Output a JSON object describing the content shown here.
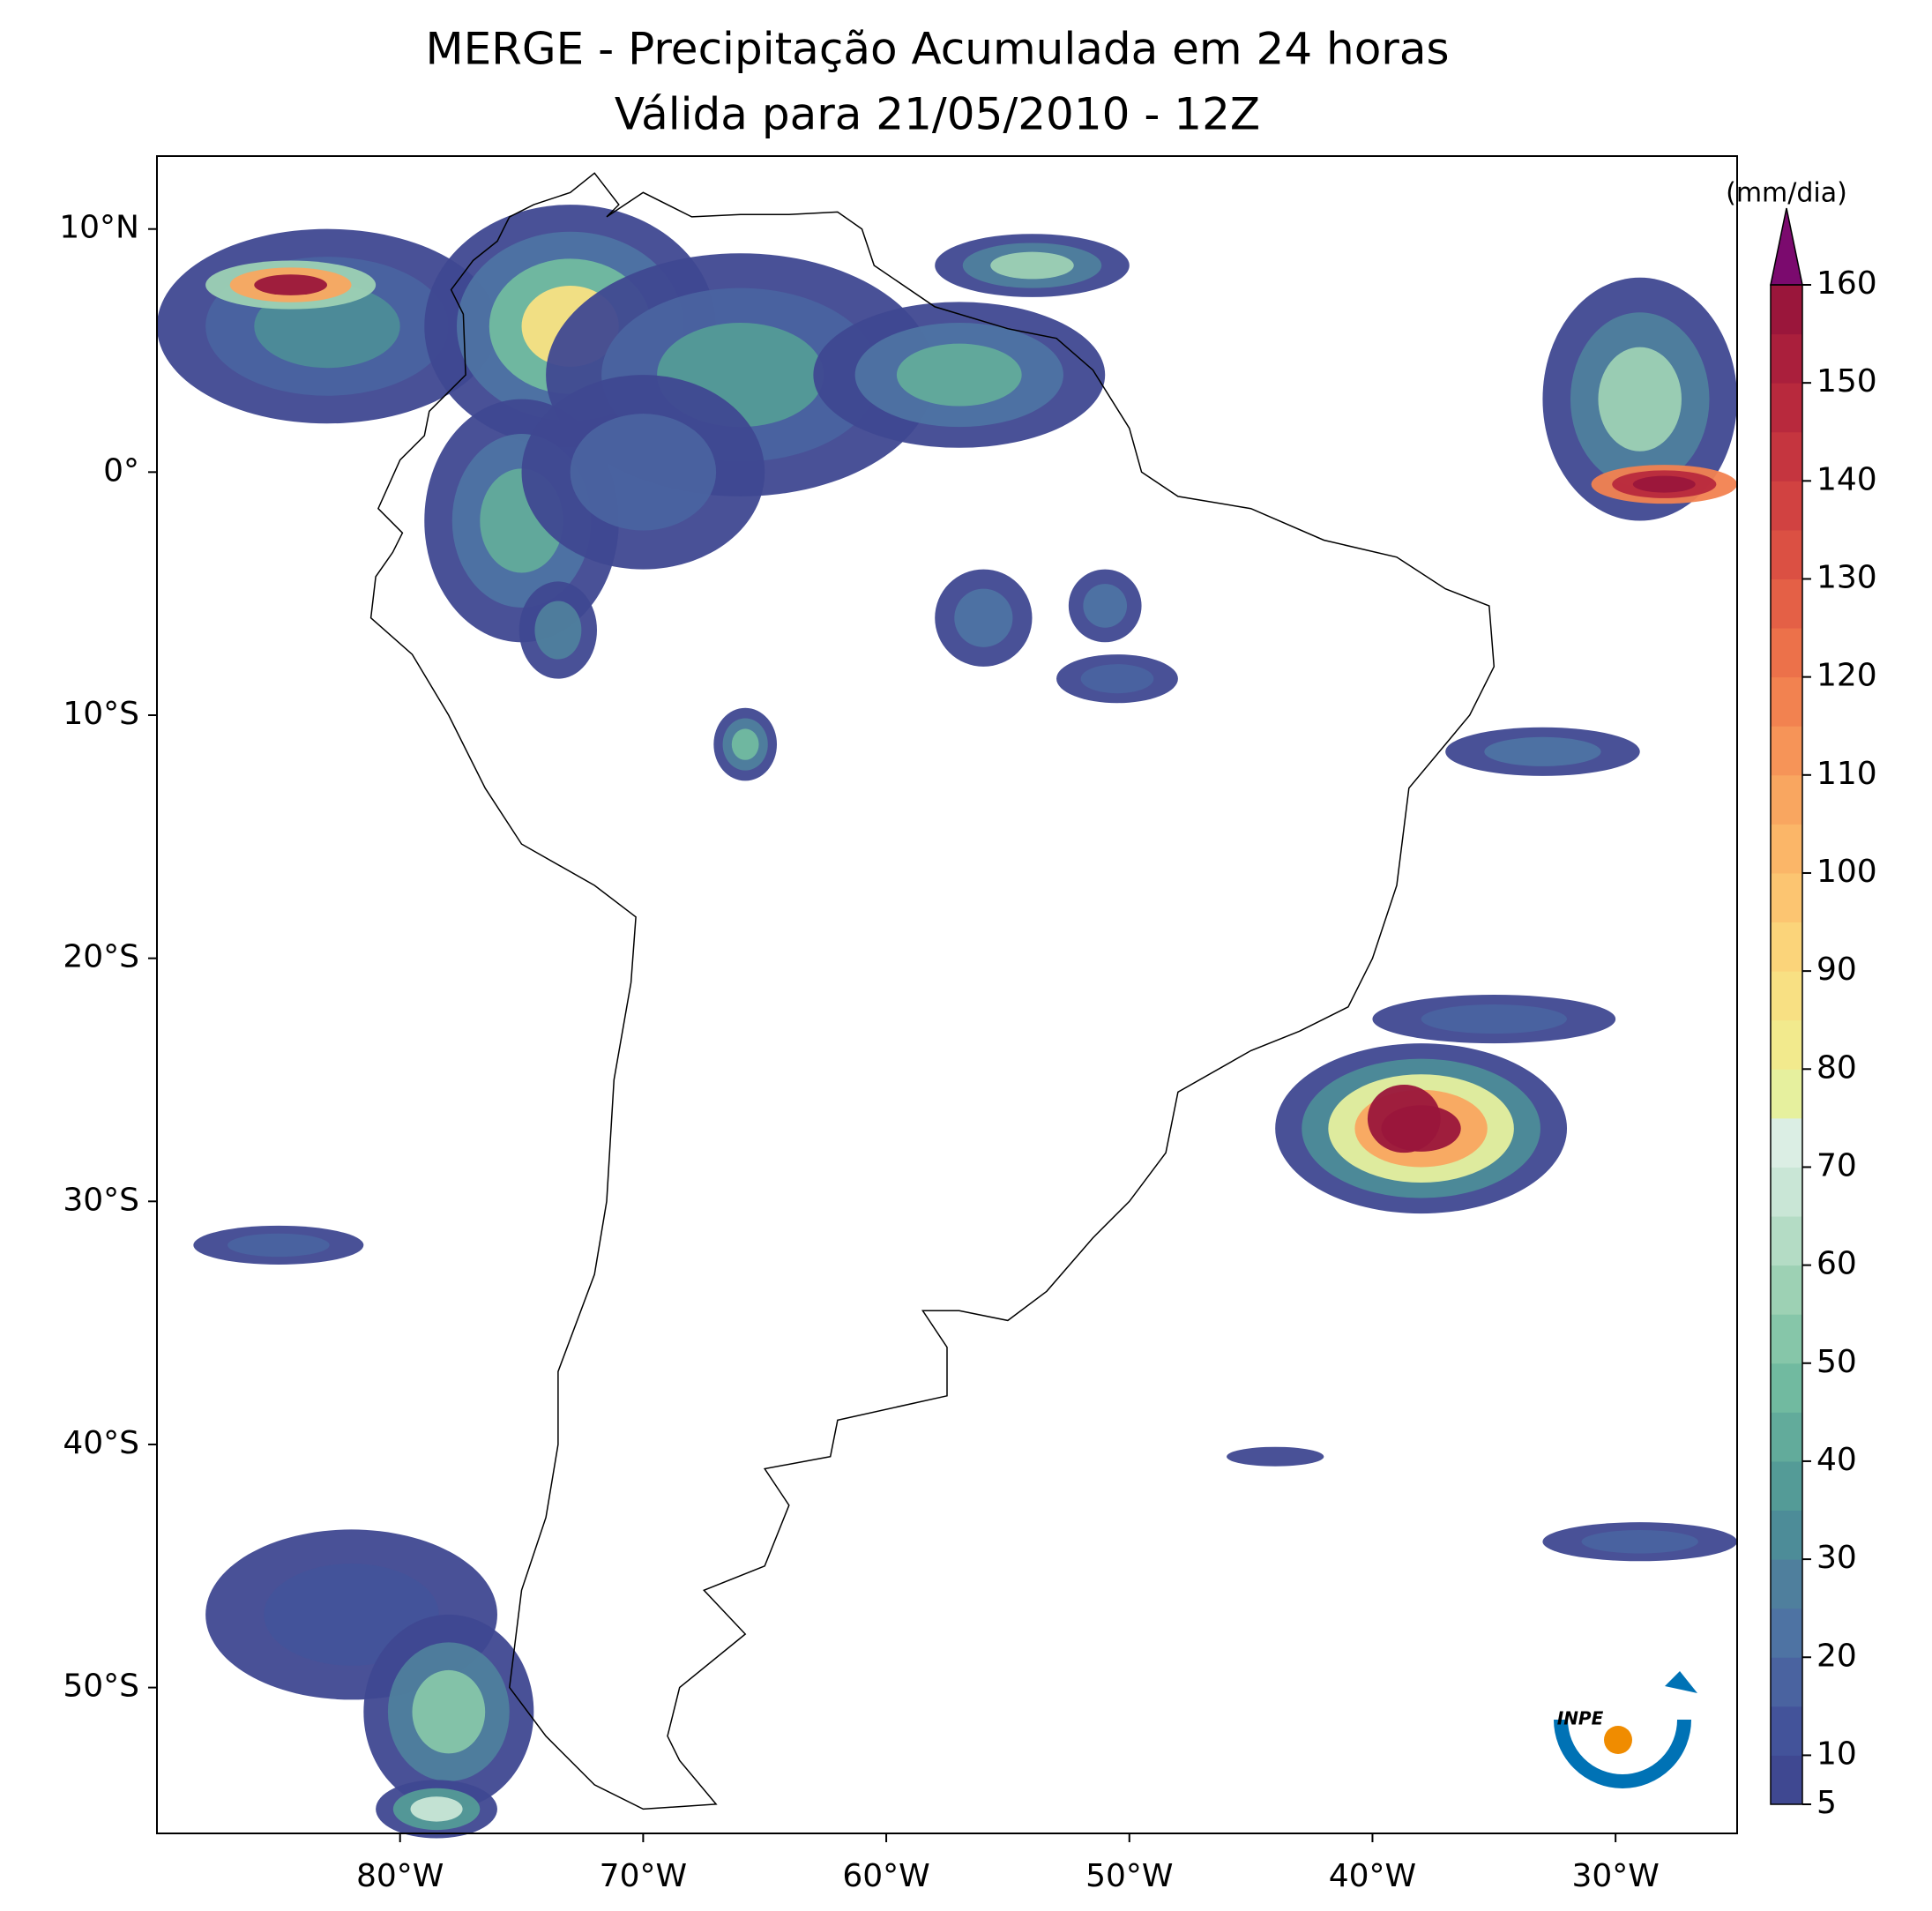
{
  "map": {
    "title": "MERGE - Precipitação Acumulada em 24 horas",
    "subtitle": "Válida para 21/05/2010 - 12Z",
    "xlim": [
      -90,
      -25
    ],
    "ylim": [
      -56,
      13
    ],
    "lon_ticks": [
      {
        "value": -80,
        "label": "80°W"
      },
      {
        "value": -70,
        "label": "70°W"
      },
      {
        "value": -60,
        "label": "60°W"
      },
      {
        "value": -50,
        "label": "50°W"
      },
      {
        "value": -40,
        "label": "40°W"
      },
      {
        "value": -30,
        "label": "30°W"
      }
    ],
    "lat_ticks": [
      {
        "value": 10,
        "label": "10°N"
      },
      {
        "value": 0,
        "label": "0°"
      },
      {
        "value": -10,
        "label": "10°S"
      },
      {
        "value": -20,
        "label": "20°S"
      },
      {
        "value": -30,
        "label": "30°S"
      },
      {
        "value": -40,
        "label": "40°S"
      },
      {
        "value": -50,
        "label": "50°S"
      }
    ],
    "logo": "INPE"
  },
  "colorbar": {
    "label": "(mm/dia)",
    "lim": [
      5,
      160
    ],
    "ticks": [
      5,
      10,
      20,
      30,
      40,
      50,
      60,
      70,
      80,
      90,
      100,
      110,
      120,
      130,
      140,
      150,
      160
    ],
    "extend_color": "#7b0a6e",
    "colors": [
      "#3f4891",
      "#43539a",
      "#4a63a0",
      "#4e73a3",
      "#4f7f9d",
      "#4d8c98",
      "#549b97",
      "#62ab9b",
      "#71baa0",
      "#86c6a9",
      "#9dd1b4",
      "#b4dcc5",
      "#c9e6d6",
      "#dbeee4",
      "#e6f09e",
      "#f2ea8d",
      "#f8e083",
      "#fbd47a",
      "#fcc571",
      "#fbb668",
      "#f9a660",
      "#f69458",
      "#f28250",
      "#ec714a",
      "#e46046",
      "#db5043",
      "#d14241",
      "#c5353f",
      "#b8293d",
      "#aa1f3c",
      "#9a163b"
    ]
  }
}
